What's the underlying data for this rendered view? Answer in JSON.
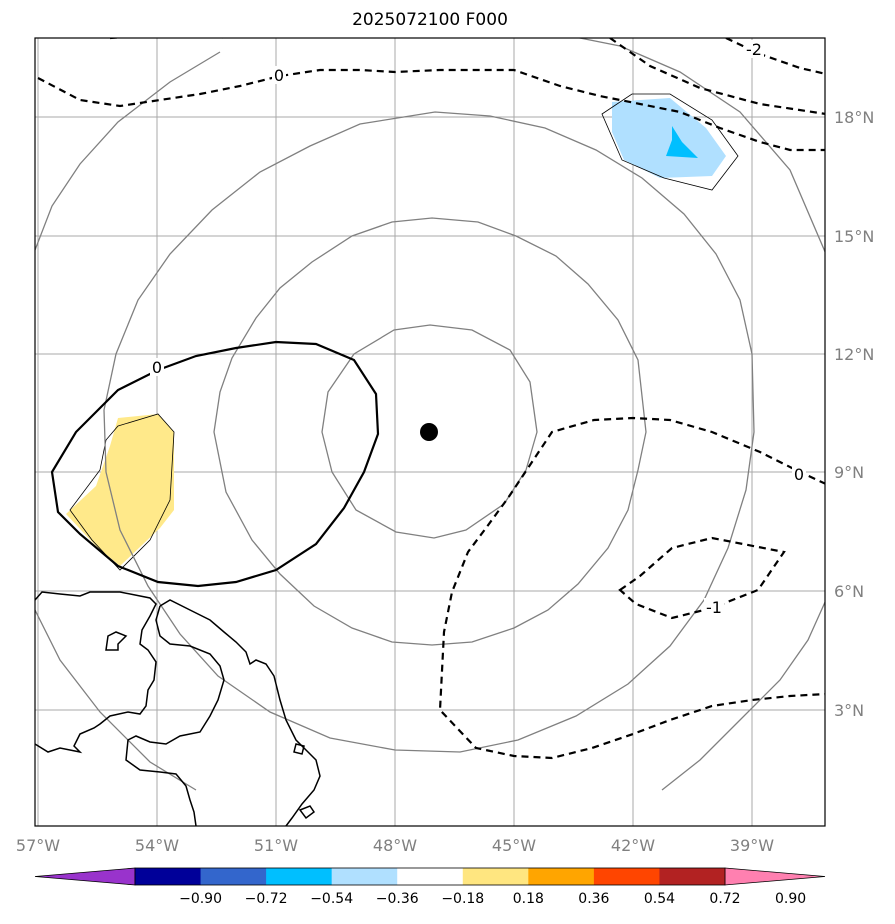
{
  "title": "2025072100 F000",
  "map": {
    "lon_labels": [
      "57°W",
      "54°W",
      "51°W",
      "48°W",
      "45°W",
      "42°W",
      "39°W"
    ],
    "lat_labels": [
      "18°N",
      "15°N",
      "12°N",
      "9°N",
      "6°N",
      "3°N"
    ],
    "center_marker": "storm-center-marker",
    "contour_labels": {
      "zero_top": "0",
      "neg2": "-2",
      "zero_left": "0",
      "zero_right": "0",
      "neg1": "-1"
    }
  },
  "colorbar": {
    "colors": [
      "#9933cc",
      "#000099",
      "#3366cc",
      "#00bfff",
      "#b0e0ff",
      "#ffffff",
      "#ffe680",
      "#ffa500",
      "#ff4500",
      "#b22222",
      "#ff80b0"
    ],
    "labels": [
      "−0.90",
      "−0.72",
      "−0.54",
      "−0.36",
      "−0.18",
      "0.18",
      "0.36",
      "0.54",
      "0.72",
      "0.90"
    ]
  }
}
